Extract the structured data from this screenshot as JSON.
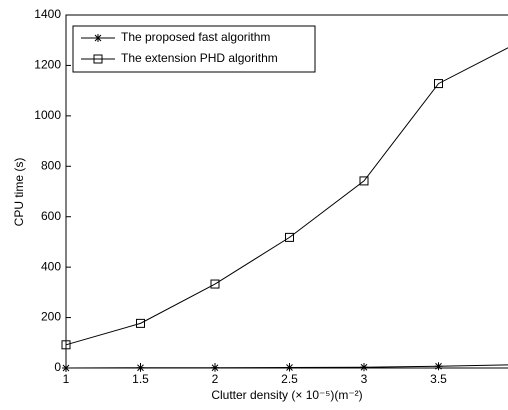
{
  "chart_data": {
    "type": "line",
    "x_label": "Clutter density (× 10⁻⁵)(m⁻²)",
    "y_label": "CPU time (s)",
    "x": [
      1,
      1.5,
      2,
      2.5,
      3,
      3.5,
      4
    ],
    "series": [
      {
        "name": "The proposed fast algorithm",
        "color": "#000000",
        "marker": "star",
        "values": [
          0,
          1,
          1,
          2,
          3,
          7,
          13
        ]
      },
      {
        "name": "The extension PHD algorithm",
        "color": "#000000",
        "marker": "square",
        "values": [
          92,
          177,
          333,
          518,
          742,
          1128,
          1280
        ]
      }
    ],
    "xlim": [
      1,
      4
    ],
    "xticks": [
      1,
      1.5,
      2,
      2.5,
      3,
      3.5
    ],
    "ylim": [
      0,
      1400
    ],
    "yticks": [
      0,
      200,
      400,
      600,
      800,
      1000,
      1200,
      1400
    ],
    "grid": false,
    "legend": "upper-left"
  }
}
